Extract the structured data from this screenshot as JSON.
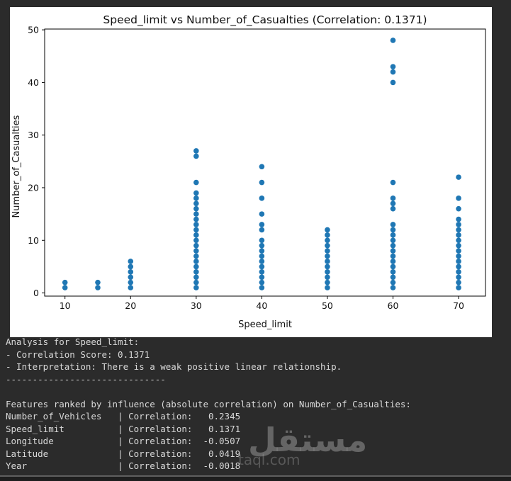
{
  "chart_data": {
    "type": "scatter",
    "title": "Speed_limit vs Number_of_Casualties (Correlation: 0.1371)",
    "xlabel": "Speed_limit",
    "ylabel": "Number_of_Casualties",
    "x_ticks": [
      10,
      20,
      30,
      40,
      50,
      60,
      70
    ],
    "y_ticks": [
      0,
      10,
      20,
      30,
      40,
      50
    ],
    "xlim": [
      6.9,
      74.1
    ],
    "ylim": [
      -0.6,
      50.15
    ],
    "grid": false,
    "point_color": "#1f77b4",
    "groups": [
      {
        "x": 10,
        "ys": [
          1,
          2
        ]
      },
      {
        "x": 15,
        "ys": [
          1,
          2
        ]
      },
      {
        "x": 20,
        "ys": [
          1,
          2,
          3,
          4,
          5,
          6
        ]
      },
      {
        "x": 30,
        "ys": [
          1,
          2,
          3,
          4,
          5,
          6,
          7,
          8,
          9,
          10,
          11,
          12,
          13,
          14,
          15,
          16,
          17,
          18,
          19,
          21,
          26,
          27
        ]
      },
      {
        "x": 40,
        "ys": [
          1,
          2,
          3,
          4,
          5,
          6,
          7,
          8,
          9,
          10,
          12,
          13,
          15,
          18,
          21,
          24
        ]
      },
      {
        "x": 50,
        "ys": [
          1,
          2,
          3,
          4,
          5,
          6,
          7,
          8,
          9,
          10,
          11,
          12
        ]
      },
      {
        "x": 60,
        "ys": [
          1,
          2,
          3,
          4,
          5,
          6,
          7,
          8,
          9,
          10,
          11,
          12,
          13,
          16,
          17,
          18,
          21,
          40,
          42,
          43,
          48
        ]
      },
      {
        "x": 70,
        "ys": [
          1,
          2,
          3,
          4,
          5,
          6,
          7,
          8,
          9,
          10,
          11,
          12,
          13,
          14,
          16,
          18,
          22
        ]
      }
    ]
  },
  "terminal": {
    "lines": [
      "Analysis for Speed_limit:",
      "- Correlation Score: 0.1371",
      "- Interpretation: There is a weak positive linear relationship.",
      "------------------------------",
      "",
      "Features ranked by influence (absolute correlation) on Number_of_Casualties:",
      "Number_of_Vehicles   | Correlation:   0.2345",
      "Speed_limit          | Correlation:   0.1371",
      "Longitude            | Correlation:  -0.0507",
      "Latitude             | Correlation:   0.0419",
      "Year                 | Correlation:  -0.0018"
    ]
  },
  "watermark": {
    "arabic": "مستقل",
    "domain": "taql.com"
  }
}
